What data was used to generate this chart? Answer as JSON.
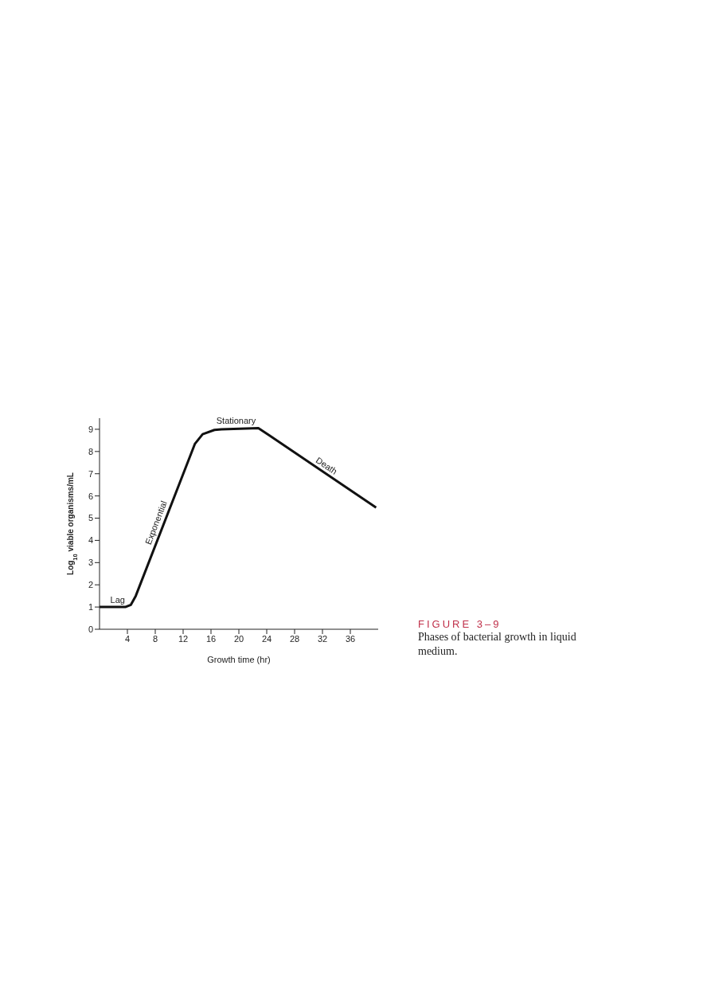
{
  "chart_data": {
    "type": "line",
    "xlabel": "Growth time (hr)",
    "ylabel": "Log$_{10}$ viable organisms/mL",
    "x": [
      0,
      3.7,
      4.5,
      5.2,
      13.7,
      14.8,
      16.5,
      17.5,
      22.8,
      24.4,
      39.7
    ],
    "series": [
      {
        "color": "#111111",
        "values": [
          1,
          1,
          1.1,
          1.5,
          8.35,
          8.78,
          8.97,
          9,
          9.05,
          8.72,
          5.48
        ]
      }
    ],
    "xlim": [
      0,
      40
    ],
    "xticks": [
      4,
      8,
      12,
      16,
      20,
      24,
      28,
      32,
      36
    ],
    "ylim": [
      0,
      9.5
    ],
    "yticks": [
      0,
      1,
      2,
      3,
      4,
      5,
      6,
      7,
      8,
      9
    ],
    "grid": false,
    "legend": false,
    "marker": "none",
    "line_style": "solid",
    "annotations": [
      "Lag",
      "Exponential",
      "Stationary",
      "Death",
      "FIGURE 3–9",
      "Phases of bacterial growth in liquid medium."
    ]
  }
}
